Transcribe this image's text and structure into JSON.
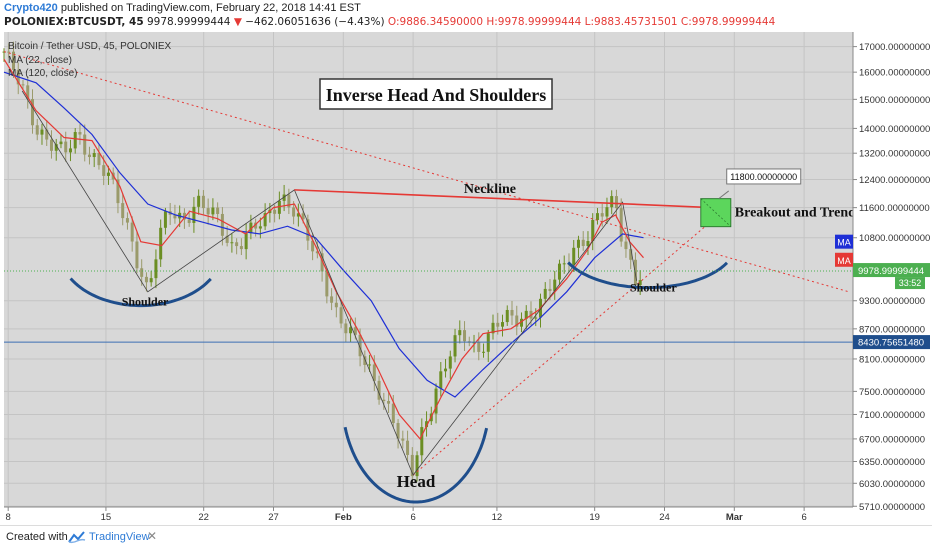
{
  "header": {
    "user": "Crypto420",
    "published": "published on TradingView.com, February 22, 2018 14:41 EST",
    "symbol": "POLONIEX:BTCUSDT, 45",
    "last": "9978.99999444",
    "change_arrow": "▼",
    "change": "−462.06051636 (−4.43%)",
    "open": "O:9886.34590000",
    "high": "H:9978.99999444",
    "low": "L:9883.45731501",
    "close": "C:9978.99999444"
  },
  "footer": {
    "created_with": "Created with",
    "brand": "TradingView",
    "close_icon": "close-icon"
  },
  "colors": {
    "candle_up": "#6b8e23",
    "candle_down": "#9a9a6a",
    "ma22": "#e53935",
    "ma120": "#1e2fd6",
    "neckline": "#e53935",
    "trend": "#e53935",
    "arc": "#1f4e8c",
    "breakout_box": "#5cd65c",
    "last_price_tag": "#4caf50",
    "level_tag": "#1f4e8c"
  },
  "chart_data": {
    "type": "line",
    "title": "Inverse Head And Shoulders",
    "instrument": "Bitcoin / Tether USD, 45, POLONIEX",
    "legend": [
      "MA (22, close)",
      "MA (120, close)"
    ],
    "y_axis": {
      "scale": "log",
      "ylim": [
        5700,
        17600
      ],
      "ticks": [
        "17000.00000000",
        "16000.00000000",
        "15000.00000000",
        "14000.00000000",
        "13200.00000000",
        "12400.00000000",
        "11600.00000000",
        "10800.00000000",
        "9300.00000000",
        "8700.00000000",
        "8100.00000000",
        "7500.00000000",
        "7100.00000000",
        "6700.00000000",
        "6350.00000000",
        "6030.00000000",
        "5710.00000000"
      ],
      "tick_values": [
        17000,
        16000,
        15000,
        14000,
        13200,
        12400,
        11600,
        10800,
        9300,
        8700,
        8100,
        7500,
        7100,
        6700,
        6350,
        6030,
        5710
      ]
    },
    "x_axis": {
      "labels": [
        "8",
        "15",
        "22",
        "27",
        "Feb",
        "6",
        "12",
        "19",
        "24",
        "Mar",
        "6"
      ],
      "day_index": [
        0,
        7,
        14,
        19,
        24,
        29,
        35,
        42,
        47,
        52,
        57
      ],
      "xlim": [
        -0.3,
        60.5
      ]
    },
    "price_path": {
      "x": [
        -0.3,
        1,
        2,
        3,
        4,
        5,
        6,
        7,
        8,
        9,
        10,
        10.8,
        11.5,
        12.5,
        13.5,
        15,
        16,
        17,
        18.5,
        19.5,
        20.5,
        21.5,
        22.5,
        23.5,
        24.5,
        25.5,
        26.5,
        27.5,
        28.5,
        29,
        29.5,
        30.5,
        31.5,
        32.5,
        33.5,
        35,
        36.5,
        38,
        39.5,
        40.5,
        41.5,
        42.5,
        43.5,
        44,
        44.5,
        45,
        45.5
      ],
      "y": [
        16800,
        15300,
        14100,
        13600,
        13100,
        13800,
        13200,
        12600,
        11600,
        10600,
        9500,
        10700,
        11500,
        11300,
        11800,
        11200,
        10600,
        10900,
        11200,
        12000,
        11600,
        10700,
        9900,
        9100,
        8600,
        8000,
        7600,
        7100,
        6350,
        6150,
        6700,
        7500,
        8100,
        8600,
        8300,
        8800,
        8900,
        9200,
        9900,
        10600,
        10900,
        11400,
        11750,
        10800,
        10300,
        9750,
        9979
      ]
    },
    "ma22": {
      "x": [
        -0.3,
        2,
        4,
        6,
        8,
        9.5,
        11,
        13,
        15,
        17,
        19,
        20.5,
        22,
        23.5,
        25,
        26.5,
        28,
        29.5,
        31,
        32.5,
        34,
        36,
        38,
        40,
        41.5,
        42.5,
        43.5,
        44.5,
        45.5
      ],
      "y": [
        16500,
        14600,
        13700,
        13600,
        12200,
        10700,
        10600,
        11500,
        11300,
        10900,
        11600,
        11700,
        10600,
        9500,
        8700,
        7900,
        7100,
        6700,
        7400,
        8100,
        8600,
        8700,
        9100,
        9800,
        10500,
        11200,
        11400,
        10700,
        10300
      ]
    },
    "ma120": {
      "x": [
        -0.3,
        2,
        4,
        6,
        8,
        10,
        12,
        14,
        16,
        18,
        20,
        22,
        24,
        26,
        28,
        30,
        32,
        34,
        36,
        38,
        40,
        42,
        44,
        45.5
      ],
      "y": [
        16000,
        15600,
        14700,
        13800,
        12600,
        11700,
        11400,
        11200,
        11000,
        10900,
        11100,
        10800,
        10000,
        9300,
        8300,
        7700,
        7400,
        7900,
        8400,
        8900,
        9500,
        10300,
        10900,
        10800
      ]
    },
    "annotations": {
      "neckline_label": "Neckline",
      "head_label": "Head",
      "shoulder_labels": [
        "Shoulder",
        "Shoulder"
      ],
      "breakout_label": "Breakout and Trend Reversal",
      "target_price": "11800.00000000",
      "ma_tags": [
        "MA",
        "MA"
      ],
      "last_price": "9978.99999444",
      "countdown": "33:52",
      "level_line": "8430.75651480"
    },
    "grid": true,
    "legend_placement": "top-left"
  }
}
